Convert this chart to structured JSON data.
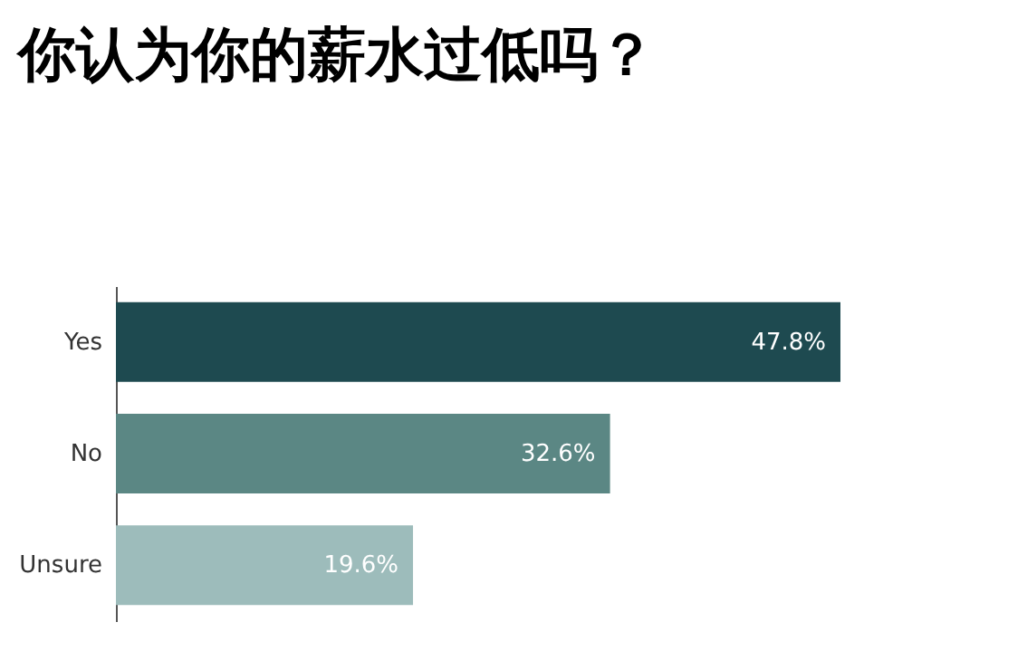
{
  "chart_data": {
    "type": "bar",
    "orientation": "horizontal",
    "title": "你认为你的薪水过低吗？",
    "categories": [
      "Yes",
      "No",
      "Unsure"
    ],
    "values": [
      47.8,
      32.6,
      19.6
    ],
    "colors": [
      "#1e4a50",
      "#5b8784",
      "#9dbcbb"
    ],
    "value_labels": [
      "47.8%",
      "32.6%",
      "19.6%"
    ]
  }
}
